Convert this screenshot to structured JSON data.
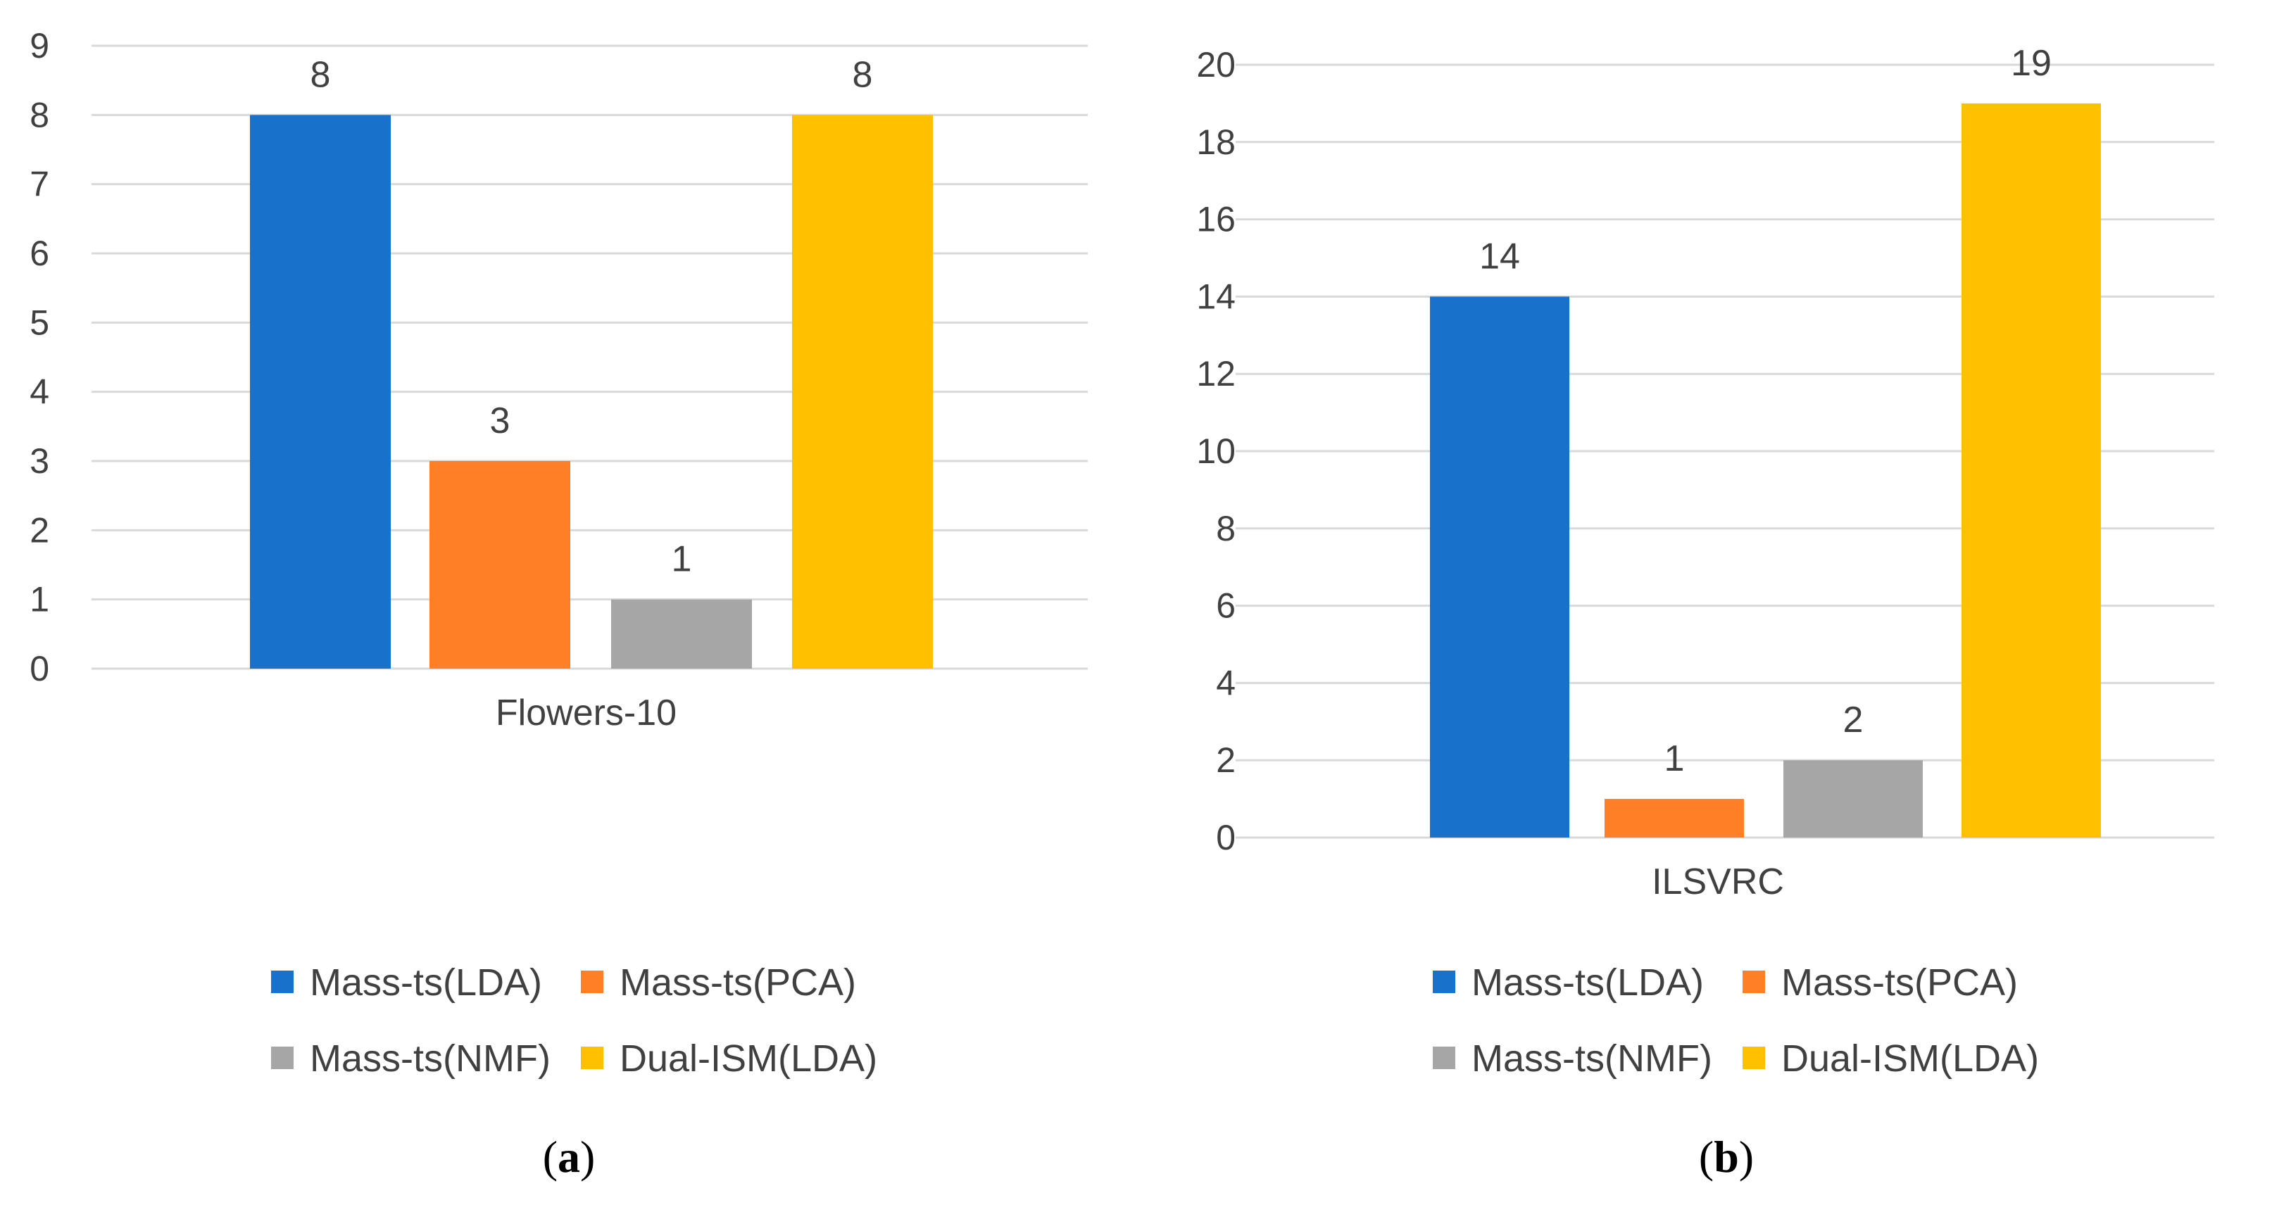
{
  "chart_data": [
    {
      "type": "bar",
      "categories": [
        "Flowers-10"
      ],
      "series": [
        {
          "name": "Mass-ts(LDA)",
          "values": [
            8
          ],
          "color": "#1872CC"
        },
        {
          "name": "Mass-ts(PCA)",
          "values": [
            3
          ],
          "color": "#FF7F27"
        },
        {
          "name": "Mass-ts(NMF)",
          "values": [
            1
          ],
          "color": "#A6A6A6"
        },
        {
          "name": "Dual-ISM(LDA)",
          "values": [
            8
          ],
          "color": "#FFC000"
        }
      ],
      "data_labels": [
        "8",
        "3",
        "1",
        "8"
      ],
      "yticks": [
        0,
        1,
        2,
        3,
        4,
        5,
        6,
        7,
        8,
        9
      ],
      "ylim": [
        0,
        9
      ],
      "grid": true,
      "legend_position": "bottom",
      "caption_letter": "a",
      "title": "",
      "xlabel": "",
      "ylabel": ""
    },
    {
      "type": "bar",
      "categories": [
        "ILSVRC"
      ],
      "series": [
        {
          "name": "Mass-ts(LDA)",
          "values": [
            14
          ],
          "color": "#1872CC"
        },
        {
          "name": "Mass-ts(PCA)",
          "values": [
            1
          ],
          "color": "#FF7F27"
        },
        {
          "name": "Mass-ts(NMF)",
          "values": [
            2
          ],
          "color": "#A6A6A6"
        },
        {
          "name": "Dual-ISM(LDA)",
          "values": [
            19
          ],
          "color": "#FFC000"
        }
      ],
      "data_labels": [
        "14",
        "1",
        "2",
        "19"
      ],
      "yticks": [
        0,
        2,
        4,
        6,
        8,
        10,
        12,
        14,
        16,
        18,
        20
      ],
      "ylim": [
        0,
        20
      ],
      "grid": true,
      "legend_position": "bottom",
      "caption_letter": "b",
      "title": "",
      "xlabel": "",
      "ylabel": ""
    }
  ],
  "colors": {
    "grid": "#D9D9D9",
    "text": "#404040"
  }
}
